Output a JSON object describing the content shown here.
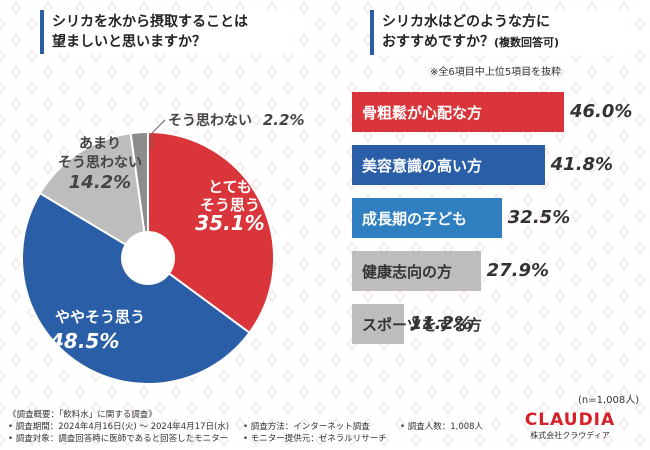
{
  "colors": {
    "red": "#d9353a",
    "blue": "#2a5ea6",
    "light_blue": "#2f7fc1",
    "gray": "#bdbdbd",
    "dark_gray": "#8c8c8c"
  },
  "left_chart": {
    "title_line1": "シリカを水から摂取することは",
    "title_line2": "望ましいと思いますか？"
  },
  "right_chart": {
    "title_line1": "シリカ水はどのような方に",
    "title_line2": "おすすめですか？",
    "title_suffix": "(複数回答可)",
    "note": "※全6項目中上位5項目を抜粋"
  },
  "chart_data": [
    {
      "type": "pie",
      "title": "シリカを水から摂取することは望ましいと思いますか？",
      "donut": true,
      "slices": [
        {
          "label_line1": "とても",
          "label_line2": "そう思う",
          "value": 35.1,
          "value_label": "35.1%"
        },
        {
          "label_line1": "ややそう思う",
          "label_line2": "",
          "value": 48.5,
          "value_label": "48.5%"
        },
        {
          "label_line1": "あまり",
          "label_line2": "そう思わない",
          "value": 14.2,
          "value_label": "14.2%"
        },
        {
          "label_line1": "そう思わない",
          "label_line2": "",
          "value": 2.2,
          "value_label": "2.2%"
        }
      ]
    },
    {
      "type": "bar",
      "orientation": "horizontal",
      "title": "シリカ水はどのような方におすすめですか？(複数回答可)",
      "categories": [
        "骨粗鬆が心配な方",
        "美容意識の高い方",
        "成長期の子ども",
        "健康志向の方",
        "スポーツをする方"
      ],
      "values": [
        46.0,
        41.8,
        32.5,
        27.9,
        11.2
      ],
      "value_labels": [
        "46.0%",
        "41.8%",
        "32.5%",
        "27.9%",
        "11.2%"
      ],
      "xlim": [
        0,
        46.0
      ]
    }
  ],
  "sample_note": "(n=1,008人)",
  "footer": {
    "overview": "《調査概要：「飲料水」に関する調査》",
    "period": "• 調査期間：2024年4月16日(火) ～ 2024年4月17日(水)",
    "target": "• 調査対象：調査回答時に医師であると回答したモニター",
    "method": "• 調査方法：インターネット調査",
    "provider": "• モニター提供元：ゼネラルリサーチ",
    "count": "• 調査人数：1,008人"
  },
  "logo": {
    "main": "CLAUDIA",
    "sub": "株式会社クラウディア"
  }
}
